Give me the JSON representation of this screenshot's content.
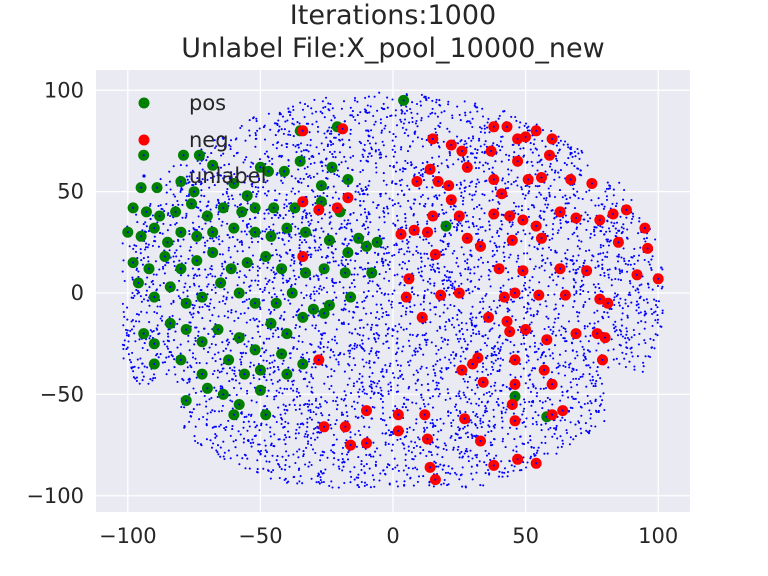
{
  "chart_data": {
    "type": "scatter",
    "title": [
      "Iterations:1000",
      "Unlabel File:X_pool_10000_new"
    ],
    "xlabel": "",
    "ylabel": "",
    "xlim": [
      -112,
      112
    ],
    "ylim": [
      -108,
      110
    ],
    "xticks": [
      -100,
      -50,
      0,
      50,
      100
    ],
    "yticks": [
      -100,
      -50,
      0,
      50,
      100
    ],
    "xtick_labels": [
      "−100",
      "−50",
      "0",
      "50",
      "100"
    ],
    "ytick_labels": [
      "−100",
      "−50",
      "0",
      "50",
      "100"
    ],
    "grid": true,
    "legend_position": "upper-left",
    "background": "#eaeaf2",
    "series": [
      {
        "name": "pos",
        "color": "#008000",
        "marker": "large-dot",
        "points": [
          [
            4,
            95
          ],
          [
            -21,
            82
          ],
          [
            -35,
            80
          ],
          [
            -94,
            68
          ],
          [
            -79,
            68
          ],
          [
            -73,
            68
          ],
          [
            -68,
            63
          ],
          [
            -50,
            62
          ],
          [
            -47,
            60
          ],
          [
            -41,
            60
          ],
          [
            -35,
            65
          ],
          [
            -23,
            62
          ],
          [
            -17,
            56
          ],
          [
            -27,
            53
          ],
          [
            -95,
            52
          ],
          [
            -89,
            52
          ],
          [
            -80,
            55
          ],
          [
            -75,
            50
          ],
          [
            -60,
            54
          ],
          [
            -55,
            48
          ],
          [
            -98,
            42
          ],
          [
            -93,
            40
          ],
          [
            -88,
            38
          ],
          [
            -82,
            40
          ],
          [
            -76,
            44
          ],
          [
            -70,
            38
          ],
          [
            -64,
            42
          ],
          [
            -57,
            40
          ],
          [
            -52,
            42
          ],
          [
            -45,
            42
          ],
          [
            -37,
            42
          ],
          [
            -27,
            45
          ],
          [
            -20,
            40
          ],
          [
            -100,
            30
          ],
          [
            -95,
            28
          ],
          [
            -90,
            32
          ],
          [
            -85,
            25
          ],
          [
            -80,
            30
          ],
          [
            -74,
            28
          ],
          [
            -68,
            30
          ],
          [
            -60,
            32
          ],
          [
            -52,
            30
          ],
          [
            -46,
            28
          ],
          [
            -40,
            32
          ],
          [
            -33,
            30
          ],
          [
            -24,
            26
          ],
          [
            -17,
            20
          ],
          [
            -13,
            27
          ],
          [
            -98,
            15
          ],
          [
            -92,
            12
          ],
          [
            -86,
            18
          ],
          [
            -80,
            12
          ],
          [
            -74,
            16
          ],
          [
            -68,
            20
          ],
          [
            -61,
            12
          ],
          [
            -55,
            15
          ],
          [
            -48,
            18
          ],
          [
            -42,
            12
          ],
          [
            -33,
            10
          ],
          [
            -26,
            12
          ],
          [
            -18,
            10
          ],
          [
            -8,
            10
          ],
          [
            -96,
            5
          ],
          [
            -90,
            -2
          ],
          [
            -84,
            3
          ],
          [
            -78,
            -5
          ],
          [
            -72,
            -2
          ],
          [
            -65,
            5
          ],
          [
            -58,
            0
          ],
          [
            -52,
            -5
          ],
          [
            -44,
            -5
          ],
          [
            -38,
            0
          ],
          [
            -30,
            -8
          ],
          [
            -24,
            -6
          ],
          [
            -16,
            -2
          ],
          [
            -94,
            -20
          ],
          [
            -90,
            -25
          ],
          [
            -84,
            -15
          ],
          [
            -78,
            -18
          ],
          [
            -72,
            -24
          ],
          [
            -66,
            -18
          ],
          [
            -58,
            -22
          ],
          [
            -52,
            -28
          ],
          [
            -46,
            -15
          ],
          [
            -40,
            -20
          ],
          [
            -34,
            -12
          ],
          [
            -26,
            -10
          ],
          [
            -90,
            -35
          ],
          [
            -80,
            -33
          ],
          [
            -72,
            -40
          ],
          [
            -62,
            -33
          ],
          [
            -56,
            -40
          ],
          [
            -50,
            -38
          ],
          [
            -42,
            -30
          ],
          [
            -34,
            -35
          ],
          [
            -78,
            -53
          ],
          [
            -70,
            -47
          ],
          [
            -64,
            -50
          ],
          [
            -58,
            -55
          ],
          [
            -50,
            -48
          ],
          [
            -40,
            -40
          ],
          [
            -60,
            -60
          ],
          [
            -48,
            -60
          ],
          [
            20,
            33
          ],
          [
            46,
            -51
          ],
          [
            58,
            -61
          ],
          [
            -6,
            25
          ],
          [
            -10,
            23
          ]
        ]
      },
      {
        "name": "neg",
        "color": "#ff0000",
        "marker": "large-dot",
        "points": [
          [
            -34,
            80
          ],
          [
            -19,
            81
          ],
          [
            15,
            76
          ],
          [
            22,
            73
          ],
          [
            26,
            70
          ],
          [
            38,
            82
          ],
          [
            43,
            82
          ],
          [
            37,
            70
          ],
          [
            47,
            76
          ],
          [
            50,
            77
          ],
          [
            54,
            80
          ],
          [
            60,
            76
          ],
          [
            59,
            68
          ],
          [
            47,
            65
          ],
          [
            28,
            62
          ],
          [
            14,
            61
          ],
          [
            17,
            55
          ],
          [
            9,
            55
          ],
          [
            21,
            53
          ],
          [
            38,
            56
          ],
          [
            41,
            49
          ],
          [
            51,
            56
          ],
          [
            56,
            57
          ],
          [
            67,
            56
          ],
          [
            75,
            54
          ],
          [
            22,
            46
          ],
          [
            -34,
            45
          ],
          [
            -28,
            41
          ],
          [
            -17,
            47
          ],
          [
            -21,
            42
          ],
          [
            15,
            38
          ],
          [
            25,
            38
          ],
          [
            38,
            39
          ],
          [
            44,
            38
          ],
          [
            49,
            36
          ],
          [
            54,
            33
          ],
          [
            63,
            40
          ],
          [
            69,
            37
          ],
          [
            78,
            36
          ],
          [
            83,
            39
          ],
          [
            88,
            41
          ],
          [
            95,
            32
          ],
          [
            13,
            30
          ],
          [
            3,
            29
          ],
          [
            8,
            31
          ],
          [
            28,
            27
          ],
          [
            33,
            23
          ],
          [
            45,
            26
          ],
          [
            56,
            27
          ],
          [
            85,
            25
          ],
          [
            96,
            22
          ],
          [
            -34,
            18
          ],
          [
            16,
            19
          ],
          [
            40,
            12
          ],
          [
            49,
            11
          ],
          [
            63,
            12
          ],
          [
            73,
            11
          ],
          [
            92,
            9
          ],
          [
            100,
            7
          ],
          [
            6,
            7
          ],
          [
            5,
            -2
          ],
          [
            18,
            -1
          ],
          [
            25,
            0
          ],
          [
            46,
            0
          ],
          [
            42,
            -2
          ],
          [
            55,
            -1
          ],
          [
            65,
            -1
          ],
          [
            78,
            -3
          ],
          [
            81,
            -5
          ],
          [
            11,
            -12
          ],
          [
            36,
            -12
          ],
          [
            43,
            -14
          ],
          [
            50,
            -18
          ],
          [
            44,
            -19
          ],
          [
            58,
            -23
          ],
          [
            69,
            -20
          ],
          [
            77,
            -20
          ],
          [
            80,
            -22
          ],
          [
            -28,
            -33
          ],
          [
            30,
            -35
          ],
          [
            32,
            -32
          ],
          [
            46,
            -33
          ],
          [
            57,
            -38
          ],
          [
            79,
            -33
          ],
          [
            26,
            -38
          ],
          [
            34,
            -44
          ],
          [
            46,
            -45
          ],
          [
            60,
            -45
          ],
          [
            -10,
            -58
          ],
          [
            2,
            -60
          ],
          [
            -18,
            -66
          ],
          [
            12,
            -60
          ],
          [
            27,
            -62
          ],
          [
            45,
            -55
          ],
          [
            46,
            -63
          ],
          [
            60,
            -60
          ],
          [
            64,
            -58
          ],
          [
            -16,
            -75
          ],
          [
            2,
            -68
          ],
          [
            13,
            -72
          ],
          [
            33,
            -73
          ],
          [
            38,
            -85
          ],
          [
            47,
            -82
          ],
          [
            54,
            -84
          ],
          [
            14,
            -86
          ],
          [
            16,
            -92
          ],
          [
            -10,
            -74
          ],
          [
            -26,
            -66
          ]
        ]
      },
      {
        "name": "unlabel",
        "color": "#0000ff",
        "marker": "small-dot"
      }
    ]
  }
}
